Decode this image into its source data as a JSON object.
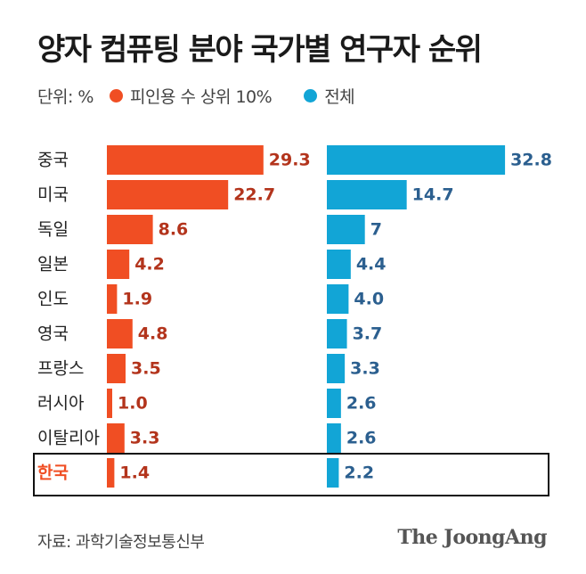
{
  "title": "양자 컴퓨팅 분야 국가별 연구자 순위",
  "legend": {
    "unit_label": "단위: %",
    "items": [
      {
        "label": "피인용 수 상위 10%",
        "color": "#f04e23"
      },
      {
        "label": "전체",
        "color": "#12a5d6"
      }
    ]
  },
  "chart_data": {
    "type": "bar",
    "orientation": "horizontal",
    "categories": [
      "중국",
      "미국",
      "독일",
      "일본",
      "인도",
      "영국",
      "프랑스",
      "러시아",
      "이탈리아",
      "한국"
    ],
    "series": [
      {
        "name": "피인용 수 상위 10%",
        "color": "#f04e23",
        "label_color": "#b3341c",
        "values": [
          29.3,
          22.7,
          8.6,
          4.2,
          1.9,
          4.8,
          3.5,
          1.0,
          3.3,
          1.4
        ],
        "labels": [
          "29.3",
          "22.7",
          "8.6",
          "4.2",
          "1.9",
          "4.8",
          "3.5",
          "1.0",
          "3.3",
          "1.4"
        ]
      },
      {
        "name": "전체",
        "color": "#12a5d6",
        "label_color": "#2b5f8f",
        "values": [
          32.8,
          14.7,
          7,
          4.4,
          4.0,
          3.7,
          3.3,
          2.6,
          2.6,
          2.2
        ],
        "labels": [
          "32.8",
          "14.7",
          "7",
          "4.4",
          "4.0",
          "3.7",
          "3.3",
          "2.6",
          "2.6",
          "2.2"
        ]
      }
    ],
    "highlight": {
      "category": "한국",
      "color": "#f04e23"
    }
  },
  "source": "자료: 과학기술정보통신부",
  "logo": "The JoongAng"
}
